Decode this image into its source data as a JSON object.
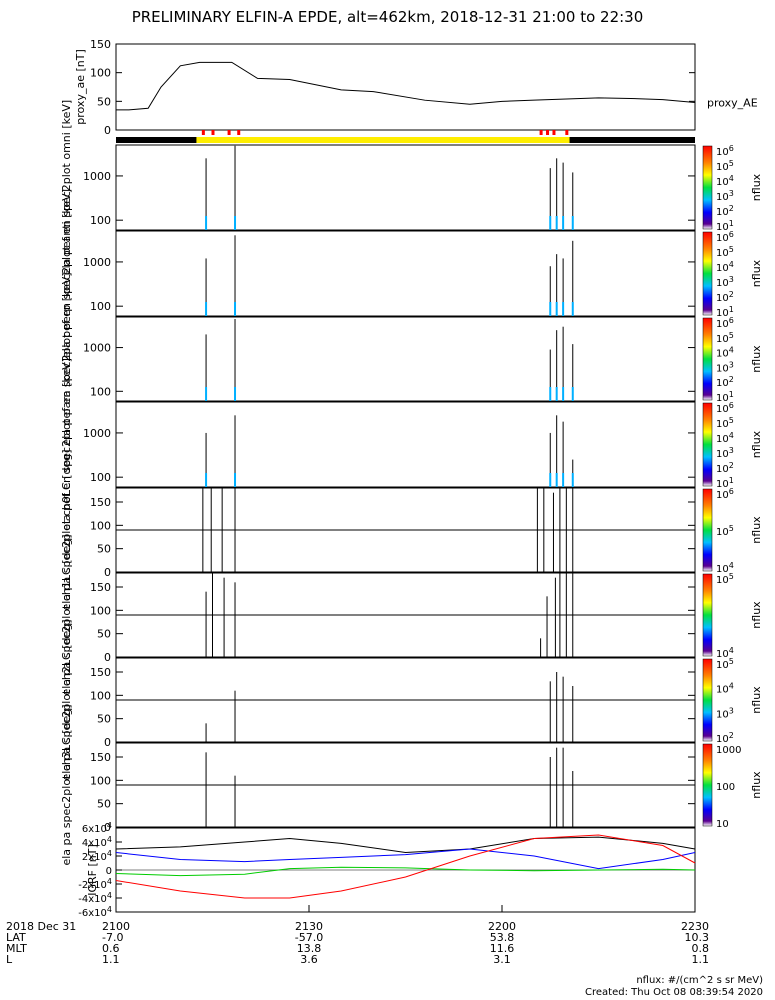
{
  "title": "PRELIMINARY ELFIN-A EPDE, alt=462km, 2018-12-31 21:00 to 22:30",
  "x_axis": {
    "tick_labels": [
      "2100",
      "2130",
      "2200",
      "2230"
    ],
    "rows": [
      {
        "label": "2018 Dec 31",
        "values": [
          "2100",
          "2130",
          "2200",
          "2230"
        ]
      },
      {
        "label": "LAT",
        "values": [
          "-7.0",
          "-57.0",
          "53.8",
          "10.3"
        ]
      },
      {
        "label": "MLT",
        "values": [
          "0.6",
          "13.8",
          "11.6",
          "0.8"
        ]
      },
      {
        "label": "L",
        "values": [
          "1.1",
          "3.6",
          "3.1",
          "1.1"
        ]
      }
    ]
  },
  "footer": {
    "unit_note": "nflux: #/(cm^2 s sr MeV)",
    "created": "Created: Thu Oct 08 08:39:54 2020"
  },
  "chart_data": [
    {
      "type": "line",
      "ylabel": "proxy_ae [nT]",
      "legend": "proxy_AE",
      "ylim": [
        0,
        150
      ],
      "yticks": [
        0,
        50,
        100,
        150
      ],
      "x": [
        0,
        2,
        5,
        7,
        10,
        13,
        15,
        18,
        22,
        27,
        35,
        40,
        48,
        55,
        60,
        65,
        70,
        75,
        80,
        85,
        90
      ],
      "values": [
        35,
        35,
        38,
        75,
        112,
        118,
        118,
        118,
        90,
        88,
        70,
        67,
        52,
        45,
        50,
        52,
        54,
        56,
        55,
        53,
        48
      ]
    },
    {
      "type": "bar",
      "ylabel": "ela pef en spec2plot omni [keV]",
      "legend": "nflux",
      "log": true,
      "yticks": [
        100,
        1000
      ],
      "ylim": [
        60,
        5000
      ],
      "colorbar_ticks": [
        "10^1",
        "10^2",
        "10^3",
        "10^4",
        "10^5",
        "10^6"
      ],
      "spikes_min": [
        14.0,
        18.5,
        67.5,
        68.5,
        69.5,
        71.0
      ],
      "spikes_top": [
        2500,
        4800,
        1500,
        2500,
        2000,
        1200
      ]
    },
    {
      "type": "bar",
      "ylabel": "ela pef en spec2plot anti [keV]",
      "legend": "nflux",
      "log": true,
      "yticks": [
        100,
        1000
      ],
      "ylim": [
        60,
        5000
      ],
      "colorbar_ticks": [
        "10^1",
        "10^2",
        "10^3",
        "10^4",
        "10^5",
        "10^6"
      ],
      "spikes_min": [
        14.0,
        18.5,
        67.5,
        68.5,
        69.5,
        71.0
      ],
      "spikes_top": [
        1200,
        4000,
        800,
        1500,
        1200,
        3000
      ]
    },
    {
      "type": "bar",
      "ylabel": "ela pef en spec2plot perp [keV]",
      "legend": "nflux",
      "log": true,
      "yticks": [
        100,
        1000
      ],
      "ylim": [
        60,
        5000
      ],
      "colorbar_ticks": [
        "10^1",
        "10^2",
        "10^3",
        "10^4",
        "10^5",
        "10^6"
      ],
      "spikes_min": [
        14.0,
        18.5,
        67.5,
        68.5,
        69.5,
        71.0
      ],
      "spikes_top": [
        2000,
        4500,
        900,
        2500,
        3000,
        1200
      ]
    },
    {
      "type": "bar",
      "ylabel": "ela pef en spec2plot para [keV]",
      "legend": "nflux",
      "log": true,
      "yticks": [
        100,
        1000
      ],
      "ylim": [
        60,
        5000
      ],
      "colorbar_ticks": [
        "10^1",
        "10^2",
        "10^3",
        "10^4",
        "10^5",
        "10^6"
      ],
      "spikes_min": [
        14.0,
        18.5,
        67.5,
        68.5,
        69.5,
        71.0
      ],
      "spikes_top": [
        1000,
        2500,
        1000,
        2500,
        1800,
        250
      ]
    },
    {
      "type": "bar",
      "ylabel": "ela pa spec2plot ch0LC [deg]",
      "legend": "nflux",
      "ylim": [
        0,
        180
      ],
      "yticks": [
        0,
        50,
        100,
        150
      ],
      "hline": 90,
      "colorbar_ticks": [
        "10^4",
        "10^5",
        "10^6"
      ],
      "spikes_min": [
        13.5,
        14.8,
        16.5,
        18.5,
        65.5,
        66.5,
        68.0,
        69.0,
        70.0,
        71.0
      ],
      "spikes_top": [
        180,
        180,
        180,
        180,
        180,
        180,
        170,
        180,
        180,
        180
      ]
    },
    {
      "type": "bar",
      "ylabel": "ela pa spec2plot ch1LC [deg]",
      "legend": "nflux",
      "ylim": [
        0,
        180
      ],
      "yticks": [
        0,
        50,
        100,
        150
      ],
      "hline": 90,
      "colorbar_ticks": [
        "10^4",
        "10^5"
      ],
      "spikes_min": [
        14.0,
        15.0,
        16.8,
        18.5,
        66.0,
        67.0,
        68.3,
        69.0,
        70.0,
        71.0
      ],
      "spikes_top": [
        140,
        180,
        170,
        160,
        40,
        130,
        170,
        180,
        180,
        180
      ]
    },
    {
      "type": "bar",
      "ylabel": "ela pa spec2plot ch2LC [deg]",
      "legend": "nflux",
      "ylim": [
        0,
        180
      ],
      "yticks": [
        0,
        50,
        100,
        150
      ],
      "hline": 90,
      "colorbar_ticks": [
        "10^2",
        "10^3",
        "10^4",
        "10^5"
      ],
      "spikes_min": [
        14.0,
        18.5,
        67.5,
        68.5,
        69.5,
        71.0
      ],
      "spikes_top": [
        40,
        110,
        130,
        150,
        140,
        120
      ]
    },
    {
      "type": "bar",
      "ylabel": "ela pa spec2plot ch3LC [deg]",
      "legend": "nflux",
      "ylim": [
        0,
        180
      ],
      "yticks": [
        0,
        50,
        100,
        150
      ],
      "hline": 90,
      "colorbar_ticks": [
        "10",
        "100",
        "1000"
      ],
      "spikes_min": [
        14.0,
        18.5,
        67.5,
        68.5,
        69.5,
        71.0
      ],
      "spikes_top": [
        160,
        110,
        150,
        170,
        170,
        120
      ]
    },
    {
      "type": "line",
      "ylabel": "IGRF [nT]",
      "ylim": [
        -60000,
        60000
      ],
      "yticks": [
        "6x10^4",
        "4x10^4",
        "2x10^4",
        "0",
        "-2x10^4",
        "-4x10^4",
        "-6x10^4"
      ],
      "series": [
        {
          "color": "#000000",
          "x": [
            0,
            10,
            20,
            27,
            35,
            45,
            55,
            65,
            75,
            85,
            90
          ],
          "values": [
            30000,
            33000,
            40000,
            45000,
            38000,
            25000,
            30000,
            45000,
            47000,
            38000,
            30000
          ]
        },
        {
          "color": "#0000ff",
          "x": [
            0,
            10,
            20,
            27,
            35,
            45,
            55,
            65,
            75,
            85,
            90
          ],
          "values": [
            25000,
            15000,
            12000,
            15000,
            18000,
            22000,
            30000,
            20000,
            2000,
            15000,
            25000
          ]
        },
        {
          "color": "#00cc00",
          "x": [
            0,
            10,
            20,
            27,
            35,
            45,
            55,
            65,
            75,
            85,
            90
          ],
          "values": [
            -5000,
            -8000,
            -6000,
            2000,
            4000,
            3000,
            0,
            -1000,
            0,
            1000,
            0
          ]
        },
        {
          "color": "#ff0000",
          "x": [
            0,
            10,
            20,
            27,
            35,
            45,
            55,
            65,
            75,
            85,
            90
          ],
          "values": [
            -15000,
            -30000,
            -40000,
            -40000,
            -30000,
            -10000,
            20000,
            45000,
            50000,
            35000,
            10000
          ]
        }
      ]
    }
  ]
}
